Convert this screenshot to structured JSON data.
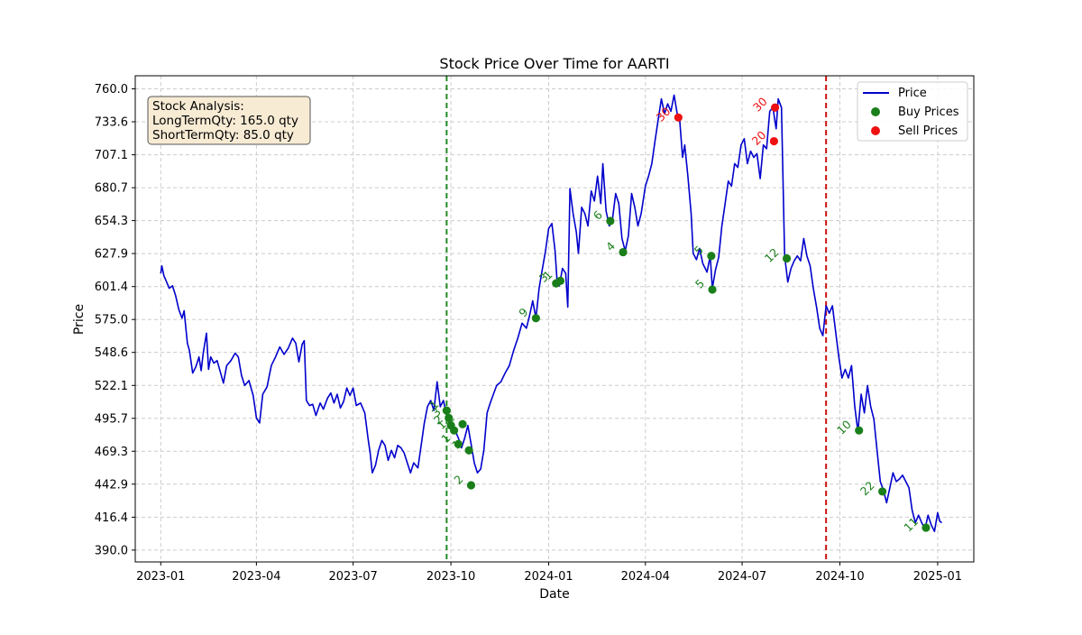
{
  "chart_data": {
    "type": "line",
    "title": "Stock Price Over Time for AARTI",
    "xlabel": "Date",
    "ylabel": "Price",
    "ylim": [
      380.5,
      770.5
    ],
    "xlim": [
      "2022-12-08",
      "2025-02-04"
    ],
    "y_ticks": [
      "390.0",
      "416.4",
      "442.9",
      "469.3",
      "495.7",
      "522.1",
      "548.6",
      "575.0",
      "601.4",
      "627.9",
      "654.3",
      "680.7",
      "707.1",
      "733.6",
      "760.0"
    ],
    "x_ticks": [
      "2023-01",
      "2023-04",
      "2023-07",
      "2023-10",
      "2024-01",
      "2024-04",
      "2024-07",
      "2024-10",
      "2025-01"
    ],
    "grid": true,
    "legend_position": "top-right",
    "legend": [
      "Price",
      "Buy Prices",
      "Sell Prices"
    ],
    "colors": {
      "price": "#0000cc",
      "buy": "#1a7f1a",
      "sell": "#ee1111",
      "buy_line": "#228B22",
      "sell_line": "#cc1111",
      "box_fill": "#f7ebd4"
    },
    "vertical_lines": [
      {
        "date": "2023-09-27",
        "color": "#228B22"
      },
      {
        "date": "2024-09-18",
        "color": "#cc1111"
      }
    ],
    "analysis_box": [
      "Stock Analysis:",
      "LongTermQty: 165.0 qty",
      "ShortTermQty: 85.0 qty"
    ],
    "price_series": [
      [
        "2023-01-01",
        612
      ],
      [
        "2023-01-02",
        618
      ],
      [
        "2023-01-04",
        610
      ],
      [
        "2023-01-06",
        606
      ],
      [
        "2023-01-09",
        600
      ],
      [
        "2023-01-12",
        602
      ],
      [
        "2023-01-15",
        594
      ],
      [
        "2023-01-18",
        583
      ],
      [
        "2023-01-21",
        576
      ],
      [
        "2023-01-23",
        582
      ],
      [
        "2023-01-26",
        556
      ],
      [
        "2023-01-28",
        550
      ],
      [
        "2023-01-31",
        532
      ],
      [
        "2023-02-03",
        537
      ],
      [
        "2023-02-06",
        545
      ],
      [
        "2023-02-08",
        534
      ],
      [
        "2023-02-10",
        548
      ],
      [
        "2023-02-13",
        564
      ],
      [
        "2023-02-15",
        535
      ],
      [
        "2023-02-17",
        545
      ],
      [
        "2023-02-20",
        540
      ],
      [
        "2023-02-23",
        542
      ],
      [
        "2023-02-26",
        533
      ],
      [
        "2023-03-01",
        524
      ],
      [
        "2023-03-04",
        538
      ],
      [
        "2023-03-08",
        542
      ],
      [
        "2023-03-12",
        548
      ],
      [
        "2023-03-15",
        545
      ],
      [
        "2023-03-18",
        530
      ],
      [
        "2023-03-21",
        522
      ],
      [
        "2023-03-25",
        526
      ],
      [
        "2023-03-29",
        514
      ],
      [
        "2023-04-01",
        496
      ],
      [
        "2023-04-04",
        492
      ],
      [
        "2023-04-07",
        515
      ],
      [
        "2023-04-11",
        521
      ],
      [
        "2023-04-15",
        538
      ],
      [
        "2023-04-19",
        545
      ],
      [
        "2023-04-23",
        553
      ],
      [
        "2023-04-27",
        547
      ],
      [
        "2023-05-01",
        552
      ],
      [
        "2023-05-05",
        560
      ],
      [
        "2023-05-08",
        556
      ],
      [
        "2023-05-11",
        541
      ],
      [
        "2023-05-14",
        555
      ],
      [
        "2023-05-16",
        558
      ],
      [
        "2023-05-18",
        510
      ],
      [
        "2023-05-21",
        506
      ],
      [
        "2023-05-24",
        507
      ],
      [
        "2023-05-27",
        498
      ],
      [
        "2023-05-31",
        508
      ],
      [
        "2023-06-03",
        503
      ],
      [
        "2023-06-07",
        512
      ],
      [
        "2023-06-10",
        516
      ],
      [
        "2023-06-13",
        508
      ],
      [
        "2023-06-16",
        515
      ],
      [
        "2023-06-19",
        504
      ],
      [
        "2023-06-22",
        509
      ],
      [
        "2023-06-25",
        520
      ],
      [
        "2023-06-28",
        514
      ],
      [
        "2023-07-01",
        520
      ],
      [
        "2023-07-04",
        506
      ],
      [
        "2023-07-08",
        508
      ],
      [
        "2023-07-12",
        500
      ],
      [
        "2023-07-15",
        480
      ],
      [
        "2023-07-17",
        468
      ],
      [
        "2023-07-19",
        452
      ],
      [
        "2023-07-22",
        458
      ],
      [
        "2023-07-25",
        470
      ],
      [
        "2023-07-28",
        478
      ],
      [
        "2023-07-31",
        474
      ],
      [
        "2023-08-03",
        462
      ],
      [
        "2023-08-06",
        470
      ],
      [
        "2023-08-09",
        464
      ],
      [
        "2023-08-12",
        474
      ],
      [
        "2023-08-15",
        472
      ],
      [
        "2023-08-18",
        468
      ],
      [
        "2023-08-21",
        460
      ],
      [
        "2023-08-24",
        452
      ],
      [
        "2023-08-27",
        460
      ],
      [
        "2023-08-31",
        456
      ],
      [
        "2023-09-03",
        474
      ],
      [
        "2023-09-06",
        492
      ],
      [
        "2023-09-09",
        505
      ],
      [
        "2023-09-12",
        510
      ],
      [
        "2023-09-15",
        502
      ],
      [
        "2023-09-18",
        525
      ],
      [
        "2023-09-21",
        505
      ],
      [
        "2023-09-24",
        510
      ],
      [
        "2023-09-27",
        498
      ],
      [
        "2023-09-30",
        491
      ],
      [
        "2023-10-02",
        485
      ],
      [
        "2023-10-05",
        486
      ],
      [
        "2023-10-08",
        480
      ],
      [
        "2023-10-11",
        472
      ],
      [
        "2023-10-14",
        480
      ],
      [
        "2023-10-17",
        490
      ],
      [
        "2023-10-20",
        475
      ],
      [
        "2023-10-23",
        460
      ],
      [
        "2023-10-26",
        452
      ],
      [
        "2023-10-29",
        455
      ],
      [
        "2023-11-01",
        470
      ],
      [
        "2023-11-04",
        500
      ],
      [
        "2023-11-07",
        508
      ],
      [
        "2023-11-10",
        515
      ],
      [
        "2023-11-13",
        522
      ],
      [
        "2023-11-17",
        525
      ],
      [
        "2023-11-21",
        532
      ],
      [
        "2023-11-25",
        538
      ],
      [
        "2023-11-29",
        550
      ],
      [
        "2023-12-03",
        560
      ],
      [
        "2023-12-07",
        572
      ],
      [
        "2023-12-11",
        568
      ],
      [
        "2023-12-14",
        578
      ],
      [
        "2023-12-17",
        590
      ],
      [
        "2023-12-20",
        576
      ],
      [
        "2023-12-23",
        600
      ],
      [
        "2023-12-26",
        615
      ],
      [
        "2023-12-29",
        630
      ],
      [
        "2024-01-01",
        648
      ],
      [
        "2024-01-04",
        652
      ],
      [
        "2024-01-07",
        630
      ],
      [
        "2024-01-09",
        605
      ],
      [
        "2024-01-11",
        602
      ],
      [
        "2024-01-14",
        616
      ],
      [
        "2024-01-17",
        612
      ],
      [
        "2024-01-19",
        585
      ],
      [
        "2024-01-21",
        680
      ],
      [
        "2024-01-24",
        660
      ],
      [
        "2024-01-27",
        645
      ],
      [
        "2024-01-29",
        628
      ],
      [
        "2024-02-01",
        665
      ],
      [
        "2024-02-04",
        660
      ],
      [
        "2024-02-07",
        650
      ],
      [
        "2024-02-10",
        678
      ],
      [
        "2024-02-13",
        670
      ],
      [
        "2024-02-16",
        690
      ],
      [
        "2024-02-19",
        668
      ],
      [
        "2024-02-21",
        700
      ],
      [
        "2024-02-24",
        662
      ],
      [
        "2024-02-27",
        650
      ],
      [
        "2024-03-01",
        655
      ],
      [
        "2024-03-04",
        676
      ],
      [
        "2024-03-07",
        668
      ],
      [
        "2024-03-10",
        640
      ],
      [
        "2024-03-13",
        630
      ],
      [
        "2024-03-16",
        642
      ],
      [
        "2024-03-19",
        676
      ],
      [
        "2024-03-22",
        665
      ],
      [
        "2024-03-25",
        650
      ],
      [
        "2024-03-28",
        660
      ],
      [
        "2024-04-01",
        682
      ],
      [
        "2024-04-04",
        690
      ],
      [
        "2024-04-07",
        700
      ],
      [
        "2024-04-10",
        718
      ],
      [
        "2024-04-13",
        735
      ],
      [
        "2024-04-16",
        752
      ],
      [
        "2024-04-19",
        740
      ],
      [
        "2024-04-22",
        748
      ],
      [
        "2024-04-25",
        742
      ],
      [
        "2024-04-28",
        755
      ],
      [
        "2024-05-01",
        740
      ],
      [
        "2024-05-03",
        738
      ],
      [
        "2024-05-06",
        705
      ],
      [
        "2024-05-08",
        715
      ],
      [
        "2024-05-11",
        690
      ],
      [
        "2024-05-14",
        660
      ],
      [
        "2024-05-16",
        628
      ],
      [
        "2024-05-19",
        623
      ],
      [
        "2024-05-22",
        632
      ],
      [
        "2024-05-25",
        620
      ],
      [
        "2024-05-29",
        613
      ],
      [
        "2024-06-01",
        626
      ],
      [
        "2024-06-03",
        600
      ],
      [
        "2024-06-06",
        615
      ],
      [
        "2024-06-09",
        625
      ],
      [
        "2024-06-12",
        650
      ],
      [
        "2024-06-15",
        668
      ],
      [
        "2024-06-18",
        686
      ],
      [
        "2024-06-21",
        682
      ],
      [
        "2024-06-24",
        700
      ],
      [
        "2024-06-27",
        697
      ],
      [
        "2024-06-30",
        715
      ],
      [
        "2024-07-03",
        720
      ],
      [
        "2024-07-06",
        700
      ],
      [
        "2024-07-09",
        710
      ],
      [
        "2024-07-12",
        705
      ],
      [
        "2024-07-15",
        708
      ],
      [
        "2024-07-18",
        688
      ],
      [
        "2024-07-21",
        715
      ],
      [
        "2024-07-24",
        712
      ],
      [
        "2024-07-27",
        742
      ],
      [
        "2024-07-30",
        745
      ],
      [
        "2024-08-02",
        728
      ],
      [
        "2024-08-04",
        752
      ],
      [
        "2024-08-07",
        745
      ],
      [
        "2024-08-10",
        626
      ],
      [
        "2024-08-13",
        605
      ],
      [
        "2024-08-16",
        616
      ],
      [
        "2024-08-19",
        622
      ],
      [
        "2024-08-22",
        626
      ],
      [
        "2024-08-25",
        622
      ],
      [
        "2024-08-28",
        640
      ],
      [
        "2024-08-31",
        626
      ],
      [
        "2024-09-03",
        618
      ],
      [
        "2024-09-06",
        600
      ],
      [
        "2024-09-09",
        585
      ],
      [
        "2024-09-12",
        568
      ],
      [
        "2024-09-15",
        562
      ],
      [
        "2024-09-18",
        586
      ],
      [
        "2024-09-21",
        580
      ],
      [
        "2024-09-24",
        586
      ],
      [
        "2024-09-27",
        565
      ],
      [
        "2024-09-30",
        545
      ],
      [
        "2024-10-03",
        528
      ],
      [
        "2024-10-06",
        535
      ],
      [
        "2024-10-09",
        528
      ],
      [
        "2024-10-12",
        538
      ],
      [
        "2024-10-15",
        505
      ],
      [
        "2024-10-18",
        485
      ],
      [
        "2024-10-21",
        515
      ],
      [
        "2024-10-24",
        500
      ],
      [
        "2024-10-27",
        522
      ],
      [
        "2024-10-30",
        505
      ],
      [
        "2024-11-02",
        495
      ],
      [
        "2024-11-05",
        470
      ],
      [
        "2024-11-08",
        445
      ],
      [
        "2024-11-11",
        438
      ],
      [
        "2024-11-14",
        428
      ],
      [
        "2024-11-17",
        440
      ],
      [
        "2024-11-20",
        452
      ],
      [
        "2024-11-23",
        445
      ],
      [
        "2024-11-26",
        447
      ],
      [
        "2024-11-29",
        450
      ],
      [
        "2024-12-02",
        445
      ],
      [
        "2024-12-05",
        440
      ],
      [
        "2024-12-08",
        422
      ],
      [
        "2024-12-11",
        412
      ],
      [
        "2024-12-14",
        418
      ],
      [
        "2024-12-17",
        412
      ],
      [
        "2024-12-20",
        407
      ],
      [
        "2024-12-23",
        418
      ],
      [
        "2024-12-26",
        410
      ],
      [
        "2024-12-29",
        405
      ],
      [
        "2025-01-01",
        420
      ],
      [
        "2025-01-03",
        413
      ],
      [
        "2025-01-05",
        412
      ]
    ],
    "buy_points": [
      [
        "2023-09-27",
        502,
        "1"
      ],
      [
        "2023-09-29",
        496,
        "3"
      ],
      [
        "2023-10-01",
        490,
        "2"
      ],
      [
        "2023-10-04",
        486,
        "1"
      ],
      [
        "2023-10-08",
        475,
        "1"
      ],
      [
        "2023-10-12",
        491,
        "2"
      ],
      [
        "2023-10-18",
        470,
        "1"
      ],
      [
        "2023-10-20",
        442,
        "2"
      ],
      [
        "2023-12-20",
        576,
        "9"
      ],
      [
        "2024-01-08",
        604,
        "3"
      ],
      [
        "2024-01-12",
        606,
        "1"
      ],
      [
        "2024-02-28",
        654,
        "6"
      ],
      [
        "2024-03-11",
        629,
        "4"
      ],
      [
        "2024-06-02",
        626,
        "5"
      ],
      [
        "2024-06-03",
        599,
        "5"
      ],
      [
        "2024-08-12",
        624,
        "12"
      ],
      [
        "2024-10-19",
        486,
        "10"
      ],
      [
        "2024-11-10",
        437,
        "22"
      ],
      [
        "2024-12-21",
        408,
        "11"
      ]
    ],
    "sell_points": [
      [
        "2024-05-02",
        737,
        "30"
      ],
      [
        "2024-07-31",
        718,
        "20"
      ],
      [
        "2024-08-01",
        745,
        "30"
      ]
    ]
  }
}
